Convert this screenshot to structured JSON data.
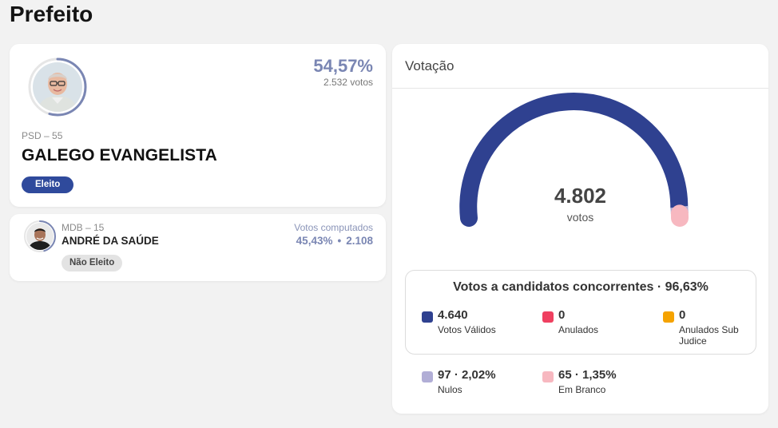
{
  "page": {
    "title": "Prefeito"
  },
  "winner": {
    "party": "PSD – 55",
    "name": "GALEGO EVANGELISTA",
    "percent": "54,57%",
    "votes": "2.532 votos",
    "status": "Eleito",
    "vote_share": 0.5457
  },
  "second": {
    "party": "MDB – 15",
    "name": "ANDRÉ DA SAÚDE",
    "computed_label": "Votos computados",
    "percent": "45,43%",
    "separator": "•",
    "votes": "2.108",
    "status": "Não Eleito",
    "vote_share": 0.4543
  },
  "voting": {
    "title": "Votação",
    "total": "4.802",
    "total_unit": "votos",
    "valid_title": "Votos a candidatos concorrentes · 96,63%",
    "gauge_fractions": {
      "valid": 0.9663,
      "nulos": 0.0202,
      "branco": 0.0135
    },
    "stats": [
      {
        "value": "4.640",
        "label": "Votos Válidos",
        "color": "#2f4190"
      },
      {
        "value": "0",
        "label": "Anulados",
        "color": "#ef4060"
      },
      {
        "value": "0",
        "label": "Anulados Sub Judice",
        "color": "#f5a300"
      },
      {
        "value": "97 · 2,02%",
        "label": "Nulos",
        "color": "#b1aed6"
      },
      {
        "value": "65 · 1,35%",
        "label": "Em Branco",
        "color": "#f7b8c0"
      }
    ]
  },
  "colors": {
    "accent": "#2f4a9c",
    "gauge_valid": "#2f4190",
    "gauge_nulos": "#b1aed6",
    "gauge_branco": "#f7b8c0",
    "ring": "#7a86b3"
  }
}
